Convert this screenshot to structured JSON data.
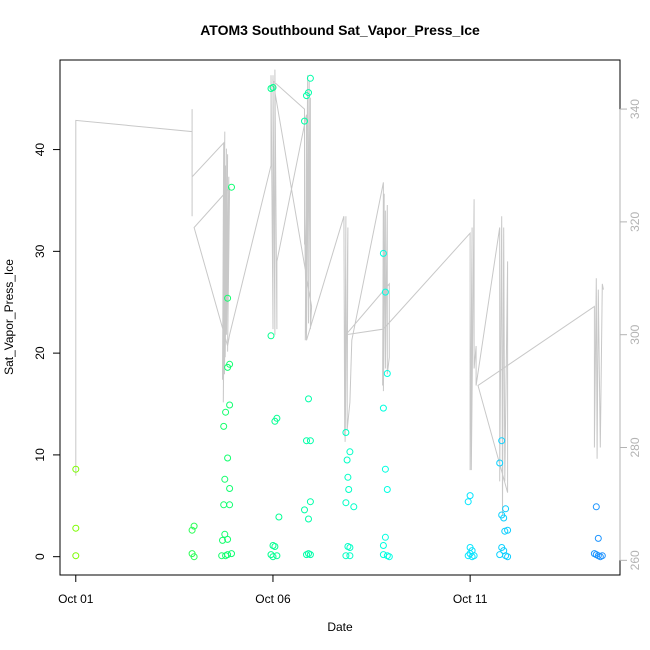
{
  "chart_data": {
    "type": "scatter",
    "title": "ATOM3 Southbound Sat_Vapor_Press_Ice",
    "xlabel": "Date",
    "ylabel": "Sat_Vapor_Press_Ice",
    "x_unit": "days after Oct 01",
    "x_ticks": [
      {
        "value": 0,
        "label": "Oct 01"
      },
      {
        "value": 5,
        "label": "Oct 06"
      },
      {
        "value": 10,
        "label": "Oct 11"
      }
    ],
    "xlim": [
      -0.4,
      13.8
    ],
    "ylim": [
      -1.8,
      48.8
    ],
    "y_ticks": [
      0,
      10,
      20,
      30,
      40
    ],
    "y2_ticks": [
      260,
      280,
      300,
      320,
      340
    ],
    "y2lim": [
      257.4,
      348.7
    ],
    "grid": false,
    "legend": "none",
    "point_series": {
      "name": "",
      "marker": "open-circle",
      "color_gradient": [
        "#7CFC00",
        "#00FF80",
        "#00FFFF",
        "#1E90FF"
      ],
      "points": [
        [
          0.0,
          8.6
        ],
        [
          0.0,
          2.8
        ],
        [
          0.0,
          0.1
        ],
        [
          2.95,
          2.6
        ],
        [
          3.0,
          3.0
        ],
        [
          2.95,
          0.3
        ],
        [
          3.0,
          0.0
        ],
        [
          3.75,
          12.8
        ],
        [
          3.8,
          14.2
        ],
        [
          3.85,
          18.6
        ],
        [
          3.9,
          18.9
        ],
        [
          3.85,
          25.4
        ],
        [
          3.95,
          36.3
        ],
        [
          3.9,
          14.9
        ],
        [
          3.85,
          9.7
        ],
        [
          3.78,
          7.6
        ],
        [
          3.9,
          6.7
        ],
        [
          3.75,
          5.1
        ],
        [
          3.9,
          5.1
        ],
        [
          3.78,
          2.2
        ],
        [
          3.85,
          1.7
        ],
        [
          3.72,
          1.6
        ],
        [
          3.7,
          0.1
        ],
        [
          3.8,
          0.1
        ],
        [
          3.85,
          0.2
        ],
        [
          3.95,
          0.3
        ],
        [
          4.95,
          46.0
        ],
        [
          5.0,
          46.1
        ],
        [
          5.05,
          13.3
        ],
        [
          5.1,
          13.6
        ],
        [
          4.95,
          21.7
        ],
        [
          5.15,
          3.9
        ],
        [
          5.0,
          1.1
        ],
        [
          5.05,
          1.0
        ],
        [
          4.95,
          0.2
        ],
        [
          5.1,
          0.1
        ],
        [
          5.0,
          0.0
        ],
        [
          5.8,
          42.8
        ],
        [
          5.85,
          45.3
        ],
        [
          5.9,
          45.6
        ],
        [
          5.95,
          47.0
        ],
        [
          5.9,
          15.5
        ],
        [
          5.85,
          11.4
        ],
        [
          5.95,
          11.4
        ],
        [
          5.95,
          5.4
        ],
        [
          5.8,
          4.6
        ],
        [
          5.9,
          3.7
        ],
        [
          5.85,
          0.2
        ],
        [
          5.9,
          0.3
        ],
        [
          5.95,
          0.2
        ],
        [
          6.85,
          12.2
        ],
        [
          6.88,
          9.5
        ],
        [
          6.95,
          10.3
        ],
        [
          6.9,
          7.8
        ],
        [
          6.92,
          6.6
        ],
        [
          6.85,
          5.3
        ],
        [
          7.05,
          4.9
        ],
        [
          6.9,
          1.0
        ],
        [
          6.95,
          0.9
        ],
        [
          6.85,
          0.1
        ],
        [
          6.95,
          0.1
        ],
        [
          7.8,
          29.8
        ],
        [
          7.85,
          26.0
        ],
        [
          7.9,
          18.0
        ],
        [
          7.8,
          14.6
        ],
        [
          7.85,
          8.6
        ],
        [
          7.9,
          6.6
        ],
        [
          7.85,
          1.9
        ],
        [
          7.8,
          1.1
        ],
        [
          7.8,
          0.2
        ],
        [
          7.9,
          0.1
        ],
        [
          7.95,
          0.0
        ],
        [
          10.0,
          6.0
        ],
        [
          9.95,
          5.4
        ],
        [
          10.0,
          0.9
        ],
        [
          10.05,
          0.6
        ],
        [
          9.95,
          0.1
        ],
        [
          10.0,
          0.3
        ],
        [
          10.05,
          0.0
        ],
        [
          10.1,
          0.1
        ],
        [
          10.8,
          11.4
        ],
        [
          10.75,
          9.2
        ],
        [
          10.9,
          4.7
        ],
        [
          10.8,
          4.1
        ],
        [
          10.85,
          3.8
        ],
        [
          10.95,
          2.6
        ],
        [
          10.88,
          2.5
        ],
        [
          10.8,
          0.9
        ],
        [
          10.85,
          0.6
        ],
        [
          10.75,
          0.2
        ],
        [
          10.9,
          0.1
        ],
        [
          10.95,
          0.0
        ],
        [
          13.2,
          4.9
        ],
        [
          13.25,
          1.8
        ],
        [
          13.15,
          0.3
        ],
        [
          13.2,
          0.2
        ],
        [
          13.25,
          0.1
        ],
        [
          13.3,
          0.0
        ],
        [
          13.35,
          0.1
        ]
      ]
    },
    "line_series": {
      "name": "",
      "axis": "right",
      "color": "#c8c8c8",
      "points": [
        [
          0.0,
          279
        ],
        [
          0.0,
          275
        ],
        [
          0.0,
          338
        ],
        [
          2.95,
          336
        ],
        [
          2.95,
          334
        ],
        [
          2.95,
          321
        ],
        [
          2.95,
          340
        ],
        [
          2.95,
          328
        ],
        [
          3.75,
          334
        ],
        [
          3.72,
          292
        ],
        [
          3.78,
          336
        ],
        [
          3.74,
          288
        ],
        [
          3.8,
          330
        ],
        [
          3.77,
          293
        ],
        [
          3.82,
          333
        ],
        [
          3.79,
          296
        ],
        [
          3.85,
          332
        ],
        [
          3.82,
          300
        ],
        [
          3.88,
          328
        ],
        [
          3.85,
          297
        ],
        [
          3.9,
          326
        ],
        [
          3.0,
          319
        ],
        [
          3.85,
          298
        ],
        [
          3.9,
          300
        ],
        [
          4.95,
          330
        ],
        [
          4.95,
          346
        ],
        [
          5.0,
          301
        ],
        [
          5.0,
          346
        ],
        [
          5.05,
          300
        ],
        [
          5.05,
          347
        ],
        [
          5.1,
          301
        ],
        [
          5.1,
          313
        ],
        [
          5.85,
          339
        ],
        [
          5.82,
          299
        ],
        [
          5.88,
          346
        ],
        [
          5.85,
          300
        ],
        [
          5.92,
          345
        ],
        [
          5.9,
          302
        ],
        [
          5.95,
          342
        ],
        [
          5.95,
          301
        ],
        [
          5.98,
          305
        ],
        [
          5.0,
          345
        ],
        [
          5.8,
          340
        ],
        [
          5.8,
          316
        ],
        [
          5.8,
          321
        ],
        [
          5.85,
          299
        ],
        [
          6.8,
          321
        ],
        [
          6.82,
          282
        ],
        [
          6.85,
          321
        ],
        [
          6.83,
          281
        ],
        [
          6.9,
          319
        ],
        [
          6.88,
          283
        ],
        [
          6.95,
          288
        ],
        [
          7.0,
          299
        ],
        [
          7.8,
          327
        ],
        [
          7.78,
          291
        ],
        [
          7.82,
          325
        ],
        [
          7.8,
          290
        ],
        [
          7.85,
          322
        ],
        [
          7.85,
          294
        ],
        [
          7.9,
          323
        ],
        [
          7.9,
          293
        ],
        [
          7.95,
          296
        ],
        [
          7.95,
          309
        ],
        [
          6.85,
          300
        ],
        [
          7.8,
          301
        ],
        [
          10.0,
          318
        ],
        [
          10.0,
          276
        ],
        [
          10.05,
          319
        ],
        [
          10.03,
          276
        ],
        [
          10.1,
          324
        ],
        [
          10.1,
          294
        ],
        [
          10.15,
          298
        ],
        [
          10.15,
          291
        ],
        [
          10.75,
          319
        ],
        [
          10.75,
          274
        ],
        [
          10.8,
          321
        ],
        [
          10.82,
          268
        ],
        [
          10.85,
          319
        ],
        [
          10.88,
          274
        ],
        [
          10.95,
          313
        ],
        [
          10.95,
          272
        ],
        [
          10.2,
          291
        ],
        [
          13.15,
          305
        ],
        [
          13.15,
          280
        ],
        [
          13.2,
          310
        ],
        [
          13.22,
          278
        ],
        [
          13.25,
          308
        ],
        [
          13.3,
          280
        ],
        [
          13.35,
          309
        ],
        [
          13.38,
          308
        ]
      ]
    }
  }
}
